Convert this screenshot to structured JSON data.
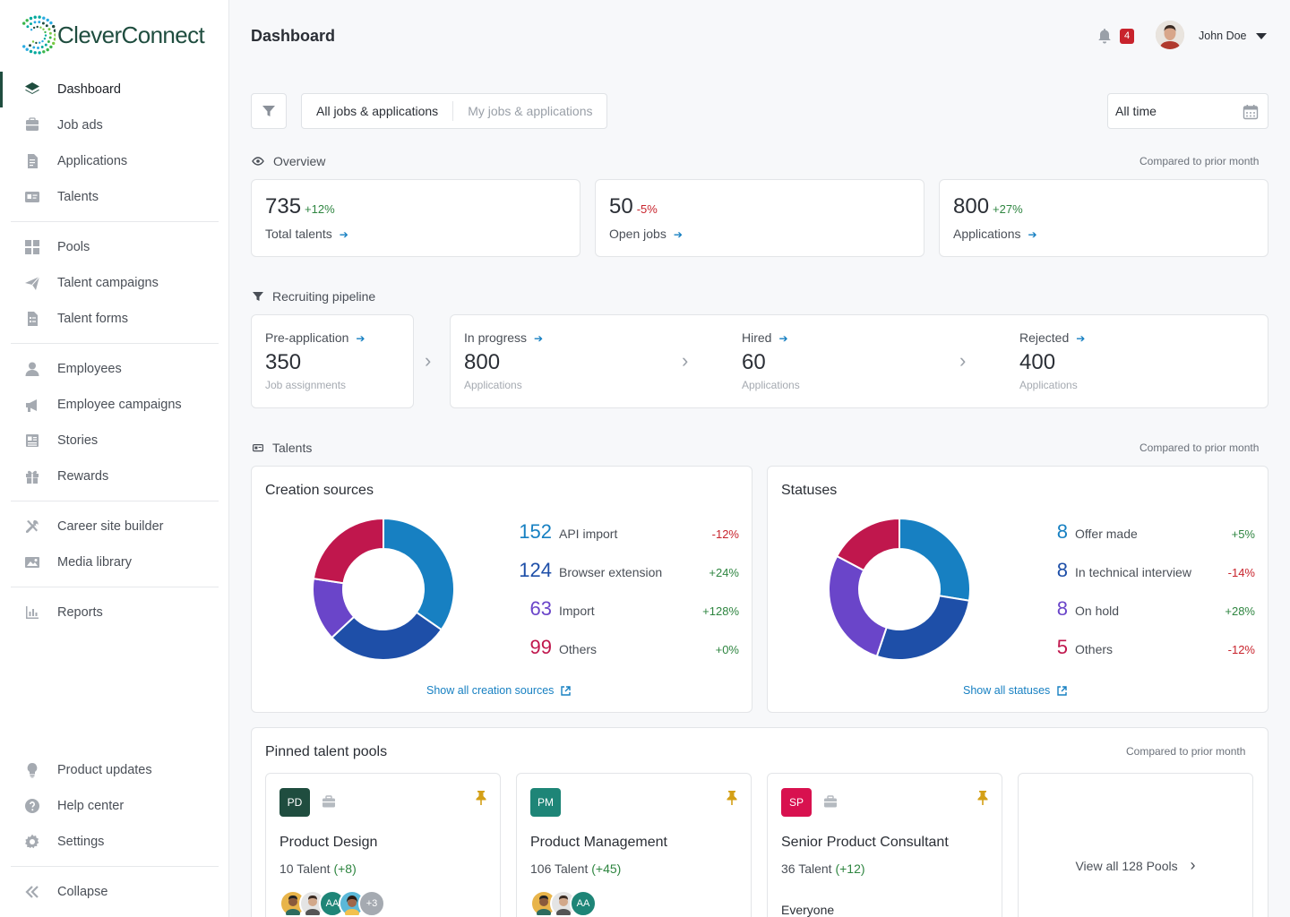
{
  "brand": {
    "name": "CleverConnect",
    "accent": "#1f4d3f"
  },
  "sidebar": {
    "groups": [
      [
        {
          "label": "Dashboard",
          "icon": "layers-icon",
          "active": true
        },
        {
          "label": "Job ads",
          "icon": "inbox-icon"
        },
        {
          "label": "Applications",
          "icon": "document-icon"
        },
        {
          "label": "Talents",
          "icon": "id-card-icon"
        }
      ],
      [
        {
          "label": "Pools",
          "icon": "grid-icon"
        },
        {
          "label": "Talent campaigns",
          "icon": "paper-plane-icon"
        },
        {
          "label": "Talent forms",
          "icon": "form-icon"
        }
      ],
      [
        {
          "label": "Employees",
          "icon": "person-icon"
        },
        {
          "label": "Employee campaigns",
          "icon": "megaphone-icon"
        },
        {
          "label": "Stories",
          "icon": "newspaper-icon"
        },
        {
          "label": "Rewards",
          "icon": "gift-icon"
        }
      ],
      [
        {
          "label": "Career site builder",
          "icon": "tools-icon"
        },
        {
          "label": "Media library",
          "icon": "image-icon"
        }
      ],
      [
        {
          "label": "Reports",
          "icon": "bar-chart-icon"
        }
      ]
    ],
    "bottom": [
      [
        {
          "label": "Product updates",
          "icon": "lightbulb-icon"
        },
        {
          "label": "Help center",
          "icon": "help-icon"
        },
        {
          "label": "Settings",
          "icon": "gear-icon"
        }
      ],
      [
        {
          "label": "Collapse",
          "icon": "double-chevron-left-icon"
        }
      ]
    ]
  },
  "header": {
    "title": "Dashboard",
    "notifications": "4",
    "user_name": "John Doe"
  },
  "filters": {
    "tab_all": "All jobs & applications",
    "tab_mine": "My jobs & applications",
    "period": "All time"
  },
  "overview": {
    "title": "Overview",
    "compare": "Compared to prior month",
    "stats": [
      {
        "value": "735",
        "change": "+12%",
        "trend": "pos",
        "label": "Total talents"
      },
      {
        "value": "50",
        "change": "-5%",
        "trend": "neg",
        "label": "Open jobs"
      },
      {
        "value": "800",
        "change": "+27%",
        "trend": "pos",
        "label": "Applications"
      }
    ]
  },
  "pipeline": {
    "title": "Recruiting pipeline",
    "stages": [
      {
        "label": "Pre-application",
        "value": "350",
        "sub": "Job assignments"
      },
      {
        "label": "In progress",
        "value": "800",
        "sub": "Applications"
      },
      {
        "label": "Hired",
        "value": "60",
        "sub": "Applications"
      },
      {
        "label": "Rejected",
        "value": "400",
        "sub": "Applications"
      }
    ]
  },
  "talents": {
    "title": "Talents",
    "compare": "Compared to prior month"
  },
  "chart_data": [
    {
      "type": "pie",
      "title": "Creation sources",
      "categories": [
        "API import",
        "Browser extension",
        "Import",
        "Others"
      ],
      "values": [
        152,
        124,
        63,
        99
      ],
      "display_values": [
        "152",
        "124",
        "63",
        "99"
      ],
      "changes": [
        "-12%",
        "+24%",
        "+128%",
        "+0%"
      ],
      "trends": [
        "neg",
        "pos",
        "pos",
        "pos"
      ],
      "colors": [
        "#1780c2",
        "#1e4fa8",
        "#6a45c9",
        "#c0174d"
      ],
      "link": "Show all creation sources"
    },
    {
      "type": "pie",
      "title": "Statuses",
      "categories": [
        "Offer made",
        "In technical interview",
        "On hold",
        "Others"
      ],
      "values": [
        8,
        8,
        8,
        5
      ],
      "display_values": [
        "8",
        "8",
        "8",
        "5"
      ],
      "changes": [
        "+5%",
        "-14%",
        "+28%",
        "-12%"
      ],
      "trends": [
        "pos",
        "neg",
        "pos",
        "neg"
      ],
      "colors": [
        "#1780c2",
        "#1e4fa8",
        "#6a45c9",
        "#c0174d"
      ],
      "link": "Show all statuses"
    }
  ],
  "pools": {
    "title": "Pinned talent pools",
    "compare": "Compared to prior month",
    "items": [
      {
        "initials": "PD",
        "color": "#1f4d3f",
        "name": "Product Design",
        "count": "10 Talent",
        "change": "(+8)",
        "avatars": [
          "",
          "",
          "AA",
          "",
          "+3"
        ]
      },
      {
        "initials": "PM",
        "color": "#1e8577",
        "name": "Product Management",
        "count": "106 Talent",
        "change": "(+45)",
        "avatars": [
          "",
          "",
          "AA"
        ]
      },
      {
        "initials": "SP",
        "color": "#d8114f",
        "name": "Senior Product Consultant",
        "count": "36 Talent",
        "change": "(+12)",
        "audience": "Everyone"
      }
    ],
    "view_all": "View all 128 Pools"
  }
}
